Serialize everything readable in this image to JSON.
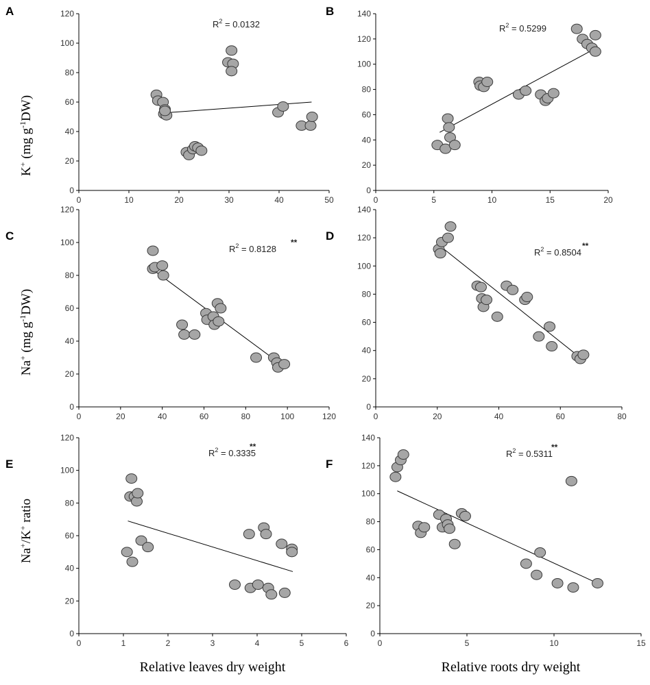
{
  "figure": {
    "y_labels": {
      "row1": {
        "base": "K",
        "sup1": "+",
        "rest": " (mg g",
        "sup2": "-1",
        "end": "DW)"
      },
      "row2": {
        "base": "Na",
        "sup1": "+",
        "rest": " (mg g",
        "sup2": "-1",
        "end": "DW)"
      },
      "row3": {
        "base": "Na",
        "sup1": "+",
        "mid": "/K",
        "sup2": "+",
        "end": " ratio"
      }
    },
    "x_labels": {
      "left": "Relative leaves dry weight",
      "right": "Relative roots dry weight"
    }
  },
  "chart_data": [
    {
      "panel": "A",
      "type": "scatter",
      "xlim": [
        0,
        50
      ],
      "ylim": [
        0,
        120
      ],
      "xticks": [
        0,
        10,
        20,
        30,
        40,
        50
      ],
      "yticks": [
        0,
        20,
        40,
        60,
        80,
        100,
        120
      ],
      "r2_label": "R",
      "r2_value": " = 0.0132",
      "significance": "",
      "fit_line": [
        [
          16.5,
          52.5
        ],
        [
          46.5,
          60
        ]
      ],
      "points": [
        [
          15.5,
          65
        ],
        [
          15.8,
          61
        ],
        [
          16.8,
          60
        ],
        [
          17.2,
          55
        ],
        [
          17,
          52
        ],
        [
          17.5,
          51
        ],
        [
          17.2,
          54
        ],
        [
          21.5,
          26
        ],
        [
          22,
          24
        ],
        [
          22.8,
          28
        ],
        [
          23.2,
          30
        ],
        [
          23.8,
          29
        ],
        [
          24.5,
          27
        ],
        [
          29.8,
          87
        ],
        [
          30.5,
          95
        ],
        [
          30.8,
          86
        ],
        [
          30.5,
          81
        ],
        [
          39.8,
          53
        ],
        [
          40.8,
          57
        ],
        [
          44.5,
          44
        ],
        [
          46.3,
          44
        ],
        [
          46.6,
          50
        ]
      ]
    },
    {
      "panel": "B",
      "type": "scatter",
      "xlim": [
        0,
        20
      ],
      "ylim": [
        0,
        140
      ],
      "xticks": [
        0,
        5,
        10,
        15,
        20
      ],
      "yticks": [
        0,
        20,
        40,
        60,
        80,
        100,
        120,
        140
      ],
      "r2_label": "R",
      "r2_value": " = 0.5299",
      "significance": "",
      "fit_line": [
        [
          5.5,
          46
        ],
        [
          19,
          113
        ]
      ],
      "points": [
        [
          5.3,
          36
        ],
        [
          6,
          33
        ],
        [
          6.2,
          57
        ],
        [
          6.3,
          50
        ],
        [
          6.4,
          42
        ],
        [
          6.8,
          36
        ],
        [
          8.9,
          86
        ],
        [
          9,
          83
        ],
        [
          9.3,
          82
        ],
        [
          9.6,
          86
        ],
        [
          12.3,
          76
        ],
        [
          12.9,
          79
        ],
        [
          14.2,
          76
        ],
        [
          14.6,
          71
        ],
        [
          14.8,
          73
        ],
        [
          15.3,
          77
        ],
        [
          17.3,
          128
        ],
        [
          17.8,
          120
        ],
        [
          18.2,
          116
        ],
        [
          18.6,
          113
        ],
        [
          18.9,
          123
        ],
        [
          18.9,
          110
        ]
      ]
    },
    {
      "panel": "C",
      "type": "scatter",
      "xlim": [
        0,
        120
      ],
      "ylim": [
        0,
        120
      ],
      "xticks": [
        0,
        20,
        40,
        60,
        80,
        100,
        120
      ],
      "yticks": [
        0,
        20,
        40,
        60,
        80,
        100,
        120
      ],
      "r2_label": "R",
      "r2_value": " = 0.8128",
      "significance": "**",
      "fit_line": [
        [
          36,
          83
        ],
        [
          99,
          24
        ]
      ],
      "points": [
        [
          35.5,
          95
        ],
        [
          35.5,
          84
        ],
        [
          36.5,
          85
        ],
        [
          40,
          86
        ],
        [
          40.5,
          80
        ],
        [
          49.5,
          50
        ],
        [
          50.5,
          44
        ],
        [
          55.5,
          44
        ],
        [
          61,
          57
        ],
        [
          61.5,
          53
        ],
        [
          64.5,
          55
        ],
        [
          65,
          50
        ],
        [
          66.5,
          63
        ],
        [
          67,
          52
        ],
        [
          68,
          60
        ],
        [
          85,
          30
        ],
        [
          93.5,
          30
        ],
        [
          95,
          27
        ],
        [
          95.5,
          24
        ],
        [
          98.5,
          26
        ]
      ]
    },
    {
      "panel": "D",
      "type": "scatter",
      "xlim": [
        0,
        80
      ],
      "ylim": [
        0,
        140
      ],
      "xticks": [
        0,
        20,
        40,
        60,
        80
      ],
      "yticks": [
        0,
        20,
        40,
        60,
        80,
        100,
        120,
        140
      ],
      "r2_label": "R",
      "r2_value": " = 0.8504",
      "significance": "**",
      "fit_line": [
        [
          21,
          114
        ],
        [
          67,
          34
        ]
      ],
      "points": [
        [
          20.5,
          112
        ],
        [
          21,
          109
        ],
        [
          21.5,
          117
        ],
        [
          23.5,
          120
        ],
        [
          24.3,
          128
        ],
        [
          33,
          86
        ],
        [
          34.2,
          85
        ],
        [
          34.5,
          77
        ],
        [
          35,
          71
        ],
        [
          36,
          76
        ],
        [
          39.5,
          64
        ],
        [
          42.5,
          86
        ],
        [
          44.5,
          83
        ],
        [
          48.5,
          76
        ],
        [
          49.2,
          78
        ],
        [
          53,
          50
        ],
        [
          56.5,
          57
        ],
        [
          57.2,
          43
        ],
        [
          65.5,
          36
        ],
        [
          66.5,
          34
        ],
        [
          67.5,
          37
        ]
      ]
    },
    {
      "panel": "E",
      "type": "scatter",
      "xlim": [
        0,
        6
      ],
      "ylim": [
        0,
        120
      ],
      "xticks": [
        0,
        1,
        2,
        3,
        4,
        5,
        6
      ],
      "yticks": [
        0,
        20,
        40,
        60,
        80,
        100,
        120
      ],
      "r2_label": "R",
      "r2_value": " = 0.3335",
      "significance": "**",
      "fit_line": [
        [
          1.1,
          69
        ],
        [
          4.8,
          38
        ]
      ],
      "points": [
        [
          1.08,
          50
        ],
        [
          1.15,
          84
        ],
        [
          1.18,
          95
        ],
        [
          1.2,
          44
        ],
        [
          1.25,
          84
        ],
        [
          1.3,
          81
        ],
        [
          1.32,
          86
        ],
        [
          1.4,
          57
        ],
        [
          1.55,
          53
        ],
        [
          3.5,
          30
        ],
        [
          3.82,
          61
        ],
        [
          3.85,
          28
        ],
        [
          4.02,
          30
        ],
        [
          4.15,
          65
        ],
        [
          4.2,
          61
        ],
        [
          4.25,
          28
        ],
        [
          4.32,
          24
        ],
        [
          4.55,
          55
        ],
        [
          4.62,
          25
        ],
        [
          4.78,
          52
        ],
        [
          4.78,
          50
        ]
      ]
    },
    {
      "panel": "F",
      "type": "scatter",
      "xlim": [
        0,
        15
      ],
      "ylim": [
        0,
        140
      ],
      "xticks": [
        0,
        5,
        10,
        15
      ],
      "yticks": [
        0,
        20,
        40,
        60,
        80,
        100,
        120,
        140
      ],
      "r2_label": "R",
      "r2_value": " = 0.5311",
      "significance": "**",
      "fit_line": [
        [
          1,
          102
        ],
        [
          12.5,
          36
        ]
      ],
      "points": [
        [
          0.9,
          112
        ],
        [
          1,
          119
        ],
        [
          1.2,
          124
        ],
        [
          1.35,
          128
        ],
        [
          2.2,
          77
        ],
        [
          2.35,
          72
        ],
        [
          2.55,
          76
        ],
        [
          3.4,
          85
        ],
        [
          3.6,
          76
        ],
        [
          3.8,
          82
        ],
        [
          3.9,
          78
        ],
        [
          4,
          75
        ],
        [
          4.3,
          64
        ],
        [
          4.7,
          86
        ],
        [
          4.9,
          84
        ],
        [
          8.4,
          50
        ],
        [
          9,
          42
        ],
        [
          9.2,
          58
        ],
        [
          10.2,
          36
        ],
        [
          11,
          109
        ],
        [
          11.1,
          33
        ],
        [
          12.5,
          36
        ]
      ]
    }
  ]
}
